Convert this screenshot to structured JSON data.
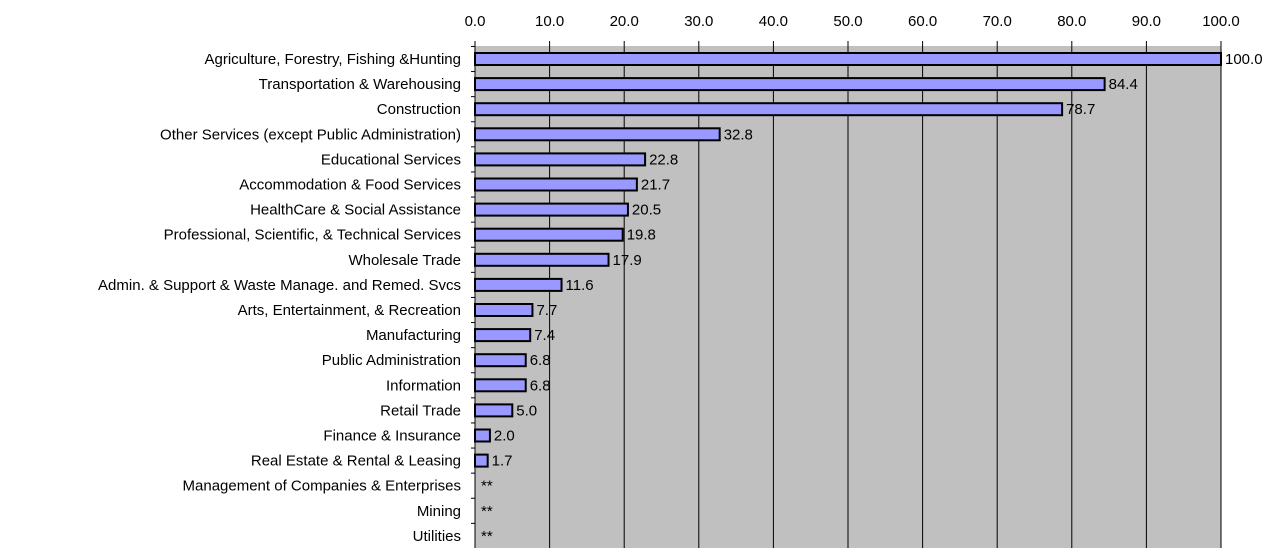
{
  "chart_data": {
    "type": "bar",
    "orientation": "horizontal",
    "title": "",
    "xlabel": "",
    "ylabel": "",
    "xlim": [
      0,
      100
    ],
    "ticks": [
      "0.0",
      "10.0",
      "20.0",
      "30.0",
      "40.0",
      "50.0",
      "60.0",
      "70.0",
      "80.0",
      "90.0",
      "100.0"
    ],
    "tick_values": [
      0,
      10,
      20,
      30,
      40,
      50,
      60,
      70,
      80,
      90,
      100
    ],
    "grid": "vertical",
    "axis_position": "top",
    "colors": {
      "bar_fill": "#9999ff",
      "bar_stroke": "#000000",
      "plot_bg": "#c0c0c0",
      "grid": "#000000"
    },
    "categories": [
      "Agriculture, Forestry, Fishing &Hunting",
      "Transportation & Warehousing",
      "Construction",
      "Other Services (except Public Administration)",
      "Educational Services",
      "Accommodation & Food Services",
      "HealthCare & Social Assistance",
      "Professional, Scientific, & Technical Services",
      "Wholesale Trade",
      "Admin. & Support & Waste Manage. and Remed. Svcs",
      "Arts, Entertainment, & Recreation",
      "Manufacturing",
      "Public Administration",
      "Information",
      "Retail Trade",
      "Finance & Insurance",
      "Real Estate & Rental & Leasing",
      "Management of Companies & Enterprises",
      "Mining",
      "Utilities"
    ],
    "values": [
      100.0,
      84.4,
      78.7,
      32.8,
      22.8,
      21.7,
      20.5,
      19.8,
      17.9,
      11.6,
      7.7,
      7.4,
      6.8,
      6.8,
      5.0,
      2.0,
      1.7,
      null,
      null,
      null
    ],
    "value_labels": [
      "100.0",
      "84.4",
      "78.7",
      "32.8",
      "22.8",
      "21.7",
      "20.5",
      "19.8",
      "17.9",
      "11.6",
      "7.7",
      "7.4",
      "6.8",
      "6.8",
      "5.0",
      "2.0",
      "1.7",
      "**",
      "**",
      "**"
    ]
  }
}
